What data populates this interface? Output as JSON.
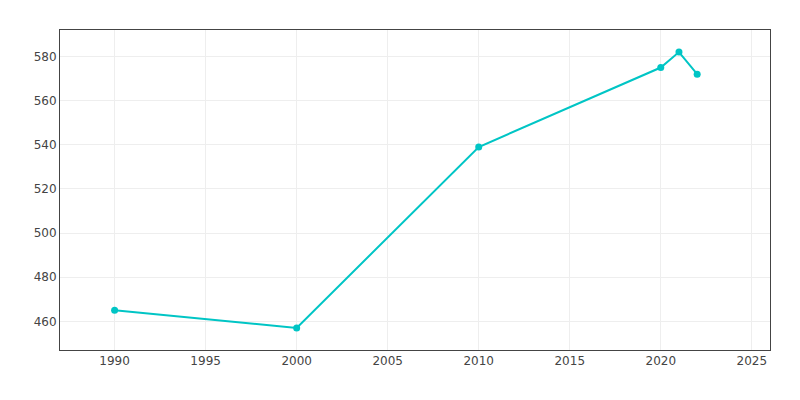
{
  "chart_data": {
    "type": "line",
    "x": [
      1990,
      2000,
      2010,
      2020,
      2021,
      2022
    ],
    "values": [
      465,
      457,
      539,
      575,
      582,
      572
    ],
    "color": "#00C5C5",
    "marker": "circle",
    "xlim": [
      1987,
      2026
    ],
    "ylim": [
      447,
      592
    ],
    "xticks": [
      1990,
      1995,
      2000,
      2005,
      2010,
      2015,
      2020,
      2025
    ],
    "yticks": [
      460,
      480,
      500,
      520,
      540,
      560,
      580
    ],
    "grid": true
  }
}
